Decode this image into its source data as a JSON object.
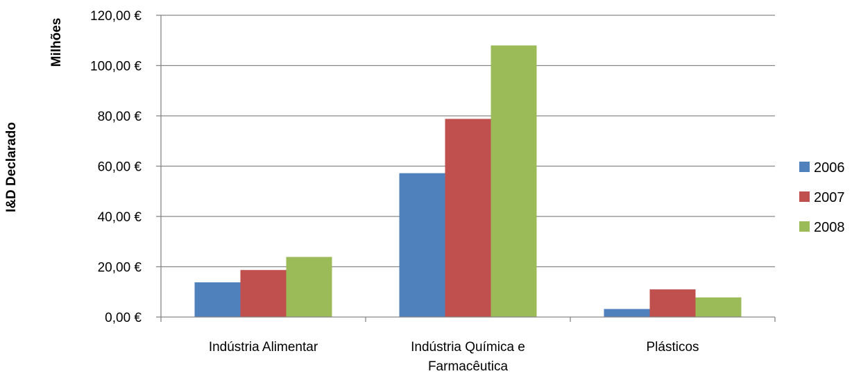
{
  "chart_data": {
    "type": "bar",
    "categories": [
      [
        "Indústria Alimentar"
      ],
      [
        "Indústria Química e",
        "Farmacêutica"
      ],
      [
        "Plásticos"
      ]
    ],
    "series": [
      {
        "name": "2006",
        "values": [
          13.8,
          57.2,
          3.2
        ],
        "color": "#4f81bd"
      },
      {
        "name": "2007",
        "values": [
          18.7,
          78.8,
          11.0
        ],
        "color": "#c0504d"
      },
      {
        "name": "2008",
        "values": [
          23.9,
          108.0,
          7.8
        ],
        "color": "#9bbb59"
      }
    ],
    "ylabel": "I&D Declarado",
    "yunit_label": "Milhões",
    "ylim": [
      0,
      120
    ],
    "ytick_step": 20,
    "ytick_labels": [
      "0,00 €",
      "20,00 €",
      "40,00 €",
      "60,00 €",
      "80,00 €",
      "100,00 €",
      "120,00 €"
    ],
    "grid": true,
    "legend_position": "right"
  }
}
